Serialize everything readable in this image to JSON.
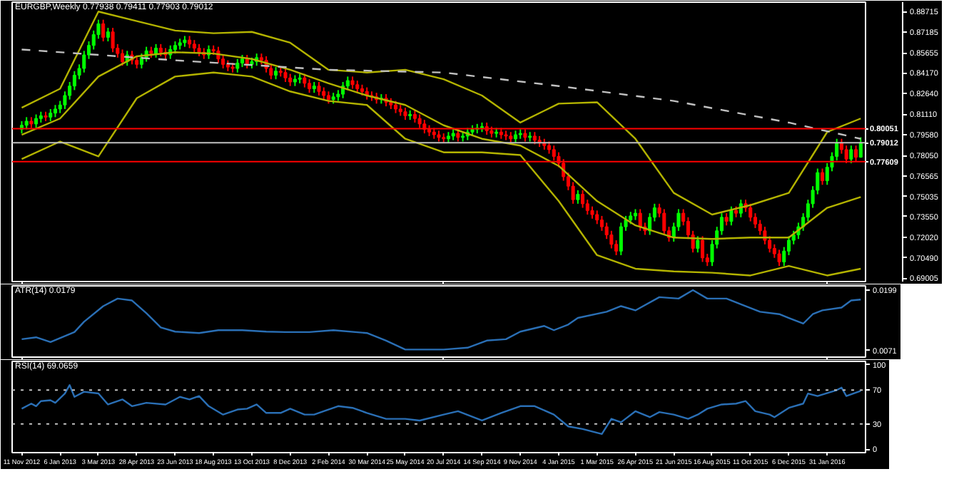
{
  "chart_data": [
    {
      "type": "candlestick",
      "title": "EURGBP,Weekly  0.77938 0.79411 0.77903 0.79012",
      "tick_labels": "y",
      "x": [
        "2012-11-11",
        "2012-11-18",
        "2012-11-25",
        "2012-12-02",
        "2012-12-09",
        "2012-12-16",
        "2012-12-23",
        "2012-12-30",
        "2013-01-06",
        "2013-01-13",
        "2013-01-20",
        "2013-01-27",
        "2013-02-03",
        "2013-02-10",
        "2013-02-17",
        "2013-02-24",
        "2013-03-03",
        "2013-03-10",
        "2013-03-17",
        "2013-03-24",
        "2013-03-31",
        "2013-04-07",
        "2013-04-14",
        "2013-04-21",
        "2013-04-28",
        "2013-05-05",
        "2013-05-12",
        "2013-05-19",
        "2013-05-26",
        "2013-06-02",
        "2013-06-09",
        "2013-06-16",
        "2013-06-23",
        "2013-06-30",
        "2013-07-07",
        "2013-07-14",
        "2013-07-21",
        "2013-07-28",
        "2013-08-04",
        "2013-08-11",
        "2013-08-18",
        "2013-08-25",
        "2013-09-01",
        "2013-09-08",
        "2013-09-15",
        "2013-09-22",
        "2013-09-29",
        "2013-10-06",
        "2013-10-13",
        "2013-10-20",
        "2013-10-27",
        "2013-11-03",
        "2013-11-10",
        "2013-11-17",
        "2013-11-24",
        "2013-12-01",
        "2013-12-08",
        "2013-12-15",
        "2013-12-22",
        "2013-12-29",
        "2014-01-05",
        "2014-01-12",
        "2014-01-19",
        "2014-01-26",
        "2014-02-02",
        "2014-02-09",
        "2014-02-16",
        "2014-02-23",
        "2014-03-02",
        "2014-03-09",
        "2014-03-16",
        "2014-03-23",
        "2014-03-30",
        "2014-04-06",
        "2014-04-13",
        "2014-04-20",
        "2014-04-27",
        "2014-05-04",
        "2014-05-11",
        "2014-05-18",
        "2014-05-25",
        "2014-06-01",
        "2014-06-08",
        "2014-06-15",
        "2014-06-22",
        "2014-06-29",
        "2014-07-06",
        "2014-07-13",
        "2014-07-20",
        "2014-07-27",
        "2014-08-03",
        "2014-08-10",
        "2014-08-17",
        "2014-08-24",
        "2014-08-31",
        "2014-09-07",
        "2014-09-14",
        "2014-09-21",
        "2014-09-28",
        "2014-10-05",
        "2014-10-12",
        "2014-10-19",
        "2014-10-26",
        "2014-11-02",
        "2014-11-09",
        "2014-11-16",
        "2014-11-23",
        "2014-11-30",
        "2014-12-07",
        "2014-12-14",
        "2014-12-21",
        "2014-12-28",
        "2015-01-04",
        "2015-01-11",
        "2015-01-18",
        "2015-01-25",
        "2015-02-01",
        "2015-02-08",
        "2015-02-15",
        "2015-02-22",
        "2015-03-01",
        "2015-03-08",
        "2015-03-15",
        "2015-03-22",
        "2015-03-29",
        "2015-04-05",
        "2015-04-12",
        "2015-04-19",
        "2015-04-26",
        "2015-05-03",
        "2015-05-10",
        "2015-05-17",
        "2015-05-24",
        "2015-05-31",
        "2015-06-07",
        "2015-06-14",
        "2015-06-21",
        "2015-06-28",
        "2015-07-05",
        "2015-07-12",
        "2015-07-19",
        "2015-07-26",
        "2015-08-02",
        "2015-08-09",
        "2015-08-16",
        "2015-08-23",
        "2015-08-30",
        "2015-09-06",
        "2015-09-13",
        "2015-09-20",
        "2015-09-27",
        "2015-10-04",
        "2015-10-11",
        "2015-10-18",
        "2015-10-25",
        "2015-11-01",
        "2015-11-08",
        "2015-11-15",
        "2015-11-22",
        "2015-11-29",
        "2015-12-06",
        "2015-12-13",
        "2015-12-20",
        "2015-12-27",
        "2016-01-03",
        "2016-01-10",
        "2016-01-17",
        "2016-01-24",
        "2016-01-31",
        "2016-02-07",
        "2016-02-14",
        "2016-02-21",
        "2016-02-28",
        "2016-03-06",
        "2016-03-13",
        "2016-03-20"
      ],
      "ohlc": [
        [
          0.8,
          0.806,
          0.797,
          0.803
        ],
        [
          0.803,
          0.809,
          0.8,
          0.806
        ],
        [
          0.806,
          0.809,
          0.801,
          0.804
        ],
        [
          0.804,
          0.811,
          0.801,
          0.808
        ],
        [
          0.808,
          0.813,
          0.805,
          0.81
        ],
        [
          0.81,
          0.813,
          0.806,
          0.809
        ],
        [
          0.809,
          0.815,
          0.806,
          0.812
        ],
        [
          0.812,
          0.818,
          0.809,
          0.815
        ],
        [
          0.815,
          0.821,
          0.812,
          0.818
        ],
        [
          0.818,
          0.828,
          0.815,
          0.825
        ],
        [
          0.825,
          0.835,
          0.822,
          0.832
        ],
        [
          0.832,
          0.843,
          0.829,
          0.84
        ],
        [
          0.84,
          0.848,
          0.837,
          0.845
        ],
        [
          0.845,
          0.858,
          0.842,
          0.855
        ],
        [
          0.855,
          0.865,
          0.852,
          0.862
        ],
        [
          0.862,
          0.873,
          0.859,
          0.87
        ],
        [
          0.87,
          0.881,
          0.867,
          0.878
        ],
        [
          0.878,
          0.881,
          0.865,
          0.868
        ],
        [
          0.868,
          0.875,
          0.865,
          0.872
        ],
        [
          0.872,
          0.875,
          0.857,
          0.86
        ],
        [
          0.86,
          0.863,
          0.853,
          0.856
        ],
        [
          0.856,
          0.859,
          0.847,
          0.85
        ],
        [
          0.85,
          0.858,
          0.847,
          0.855
        ],
        [
          0.855,
          0.858,
          0.848,
          0.851
        ],
        [
          0.851,
          0.854,
          0.845,
          0.848
        ],
        [
          0.848,
          0.856,
          0.845,
          0.853
        ],
        [
          0.853,
          0.861,
          0.85,
          0.858
        ],
        [
          0.858,
          0.861,
          0.853,
          0.856
        ],
        [
          0.856,
          0.863,
          0.853,
          0.86
        ],
        [
          0.86,
          0.863,
          0.854,
          0.857
        ],
        [
          0.857,
          0.86,
          0.852,
          0.855
        ],
        [
          0.855,
          0.862,
          0.852,
          0.859
        ],
        [
          0.859,
          0.865,
          0.856,
          0.862
        ],
        [
          0.862,
          0.867,
          0.859,
          0.864
        ],
        [
          0.864,
          0.869,
          0.861,
          0.866
        ],
        [
          0.866,
          0.869,
          0.86,
          0.863
        ],
        [
          0.863,
          0.866,
          0.857,
          0.86
        ],
        [
          0.86,
          0.863,
          0.854,
          0.857
        ],
        [
          0.857,
          0.86,
          0.852,
          0.855
        ],
        [
          0.855,
          0.862,
          0.852,
          0.859
        ],
        [
          0.859,
          0.862,
          0.855,
          0.858
        ],
        [
          0.858,
          0.861,
          0.849,
          0.852
        ],
        [
          0.852,
          0.855,
          0.845,
          0.848
        ],
        [
          0.848,
          0.851,
          0.843,
          0.846
        ],
        [
          0.846,
          0.849,
          0.842,
          0.845
        ],
        [
          0.845,
          0.852,
          0.842,
          0.849
        ],
        [
          0.849,
          0.855,
          0.846,
          0.852
        ],
        [
          0.852,
          0.855,
          0.845,
          0.848
        ],
        [
          0.848,
          0.853,
          0.845,
          0.85
        ],
        [
          0.85,
          0.856,
          0.847,
          0.853
        ],
        [
          0.853,
          0.856,
          0.848,
          0.851
        ],
        [
          0.851,
          0.854,
          0.842,
          0.845
        ],
        [
          0.845,
          0.848,
          0.837,
          0.84
        ],
        [
          0.84,
          0.846,
          0.837,
          0.843
        ],
        [
          0.843,
          0.846,
          0.839,
          0.842
        ],
        [
          0.842,
          0.845,
          0.835,
          0.838
        ],
        [
          0.838,
          0.841,
          0.832,
          0.835
        ],
        [
          0.835,
          0.84,
          0.832,
          0.837
        ],
        [
          0.837,
          0.841,
          0.834,
          0.838
        ],
        [
          0.838,
          0.841,
          0.831,
          0.834
        ],
        [
          0.834,
          0.837,
          0.827,
          0.83
        ],
        [
          0.83,
          0.835,
          0.827,
          0.832
        ],
        [
          0.832,
          0.835,
          0.825,
          0.828
        ],
        [
          0.828,
          0.831,
          0.822,
          0.825
        ],
        [
          0.825,
          0.828,
          0.819,
          0.822
        ],
        [
          0.822,
          0.827,
          0.819,
          0.824
        ],
        [
          0.824,
          0.829,
          0.821,
          0.826
        ],
        [
          0.826,
          0.835,
          0.823,
          0.832
        ],
        [
          0.832,
          0.839,
          0.829,
          0.836
        ],
        [
          0.836,
          0.839,
          0.83,
          0.833
        ],
        [
          0.833,
          0.836,
          0.827,
          0.83
        ],
        [
          0.83,
          0.833,
          0.825,
          0.828
        ],
        [
          0.828,
          0.831,
          0.822,
          0.825
        ],
        [
          0.825,
          0.828,
          0.821,
          0.824
        ],
        [
          0.824,
          0.827,
          0.819,
          0.822
        ],
        [
          0.822,
          0.826,
          0.819,
          0.823
        ],
        [
          0.823,
          0.826,
          0.817,
          0.82
        ],
        [
          0.82,
          0.823,
          0.815,
          0.818
        ],
        [
          0.818,
          0.821,
          0.812,
          0.815
        ],
        [
          0.815,
          0.818,
          0.81,
          0.813
        ],
        [
          0.813,
          0.816,
          0.807,
          0.81
        ],
        [
          0.81,
          0.814,
          0.807,
          0.811
        ],
        [
          0.811,
          0.814,
          0.805,
          0.808
        ],
        [
          0.808,
          0.811,
          0.801,
          0.804
        ],
        [
          0.804,
          0.807,
          0.797,
          0.8
        ],
        [
          0.8,
          0.803,
          0.795,
          0.798
        ],
        [
          0.798,
          0.801,
          0.793,
          0.796
        ],
        [
          0.796,
          0.799,
          0.791,
          0.794
        ],
        [
          0.794,
          0.797,
          0.79,
          0.793
        ],
        [
          0.793,
          0.798,
          0.79,
          0.795
        ],
        [
          0.795,
          0.8,
          0.792,
          0.797
        ],
        [
          0.797,
          0.8,
          0.791,
          0.794
        ],
        [
          0.794,
          0.798,
          0.791,
          0.795
        ],
        [
          0.795,
          0.801,
          0.792,
          0.798
        ],
        [
          0.798,
          0.803,
          0.795,
          0.8
        ],
        [
          0.8,
          0.804,
          0.797,
          0.801
        ],
        [
          0.801,
          0.805,
          0.798,
          0.802
        ],
        [
          0.802,
          0.805,
          0.796,
          0.799
        ],
        [
          0.799,
          0.802,
          0.794,
          0.797
        ],
        [
          0.797,
          0.801,
          0.794,
          0.798
        ],
        [
          0.798,
          0.801,
          0.793,
          0.796
        ],
        [
          0.796,
          0.799,
          0.792,
          0.795
        ],
        [
          0.795,
          0.798,
          0.79,
          0.793
        ],
        [
          0.793,
          0.799,
          0.79,
          0.796
        ],
        [
          0.796,
          0.8,
          0.793,
          0.797
        ],
        [
          0.797,
          0.8,
          0.791,
          0.794
        ],
        [
          0.794,
          0.798,
          0.791,
          0.795
        ],
        [
          0.795,
          0.798,
          0.789,
          0.792
        ],
        [
          0.792,
          0.795,
          0.787,
          0.79
        ],
        [
          0.79,
          0.793,
          0.785,
          0.788
        ],
        [
          0.788,
          0.791,
          0.782,
          0.785
        ],
        [
          0.785,
          0.788,
          0.777,
          0.78
        ],
        [
          0.78,
          0.783,
          0.772,
          0.775
        ],
        [
          0.775,
          0.778,
          0.762,
          0.765
        ],
        [
          0.765,
          0.768,
          0.755,
          0.758
        ],
        [
          0.758,
          0.761,
          0.745,
          0.748
        ],
        [
          0.748,
          0.755,
          0.745,
          0.752
        ],
        [
          0.752,
          0.755,
          0.742,
          0.745
        ],
        [
          0.745,
          0.748,
          0.737,
          0.74
        ],
        [
          0.74,
          0.743,
          0.734,
          0.737
        ],
        [
          0.737,
          0.74,
          0.73,
          0.733
        ],
        [
          0.733,
          0.736,
          0.725,
          0.728
        ],
        [
          0.728,
          0.731,
          0.719,
          0.722
        ],
        [
          0.722,
          0.725,
          0.712,
          0.715
        ],
        [
          0.715,
          0.718,
          0.707,
          0.71
        ],
        [
          0.71,
          0.731,
          0.707,
          0.728
        ],
        [
          0.728,
          0.736,
          0.725,
          0.733
        ],
        [
          0.733,
          0.739,
          0.73,
          0.736
        ],
        [
          0.736,
          0.741,
          0.733,
          0.738
        ],
        [
          0.738,
          0.741,
          0.725,
          0.728
        ],
        [
          0.728,
          0.731,
          0.722,
          0.725
        ],
        [
          0.725,
          0.738,
          0.722,
          0.735
        ],
        [
          0.735,
          0.745,
          0.732,
          0.742
        ],
        [
          0.742,
          0.745,
          0.735,
          0.738
        ],
        [
          0.738,
          0.741,
          0.722,
          0.725
        ],
        [
          0.725,
          0.728,
          0.717,
          0.72
        ],
        [
          0.72,
          0.731,
          0.717,
          0.728
        ],
        [
          0.728,
          0.741,
          0.725,
          0.738
        ],
        [
          0.738,
          0.741,
          0.729,
          0.732
        ],
        [
          0.732,
          0.735,
          0.719,
          0.722
        ],
        [
          0.722,
          0.725,
          0.709,
          0.712
        ],
        [
          0.712,
          0.721,
          0.709,
          0.718
        ],
        [
          0.718,
          0.721,
          0.702,
          0.705
        ],
        [
          0.705,
          0.708,
          0.699,
          0.702
        ],
        [
          0.702,
          0.718,
          0.699,
          0.715
        ],
        [
          0.715,
          0.728,
          0.712,
          0.725
        ],
        [
          0.725,
          0.738,
          0.722,
          0.735
        ],
        [
          0.735,
          0.738,
          0.729,
          0.732
        ],
        [
          0.732,
          0.743,
          0.729,
          0.74
        ],
        [
          0.74,
          0.743,
          0.735,
          0.738
        ],
        [
          0.738,
          0.748,
          0.735,
          0.745
        ],
        [
          0.745,
          0.748,
          0.739,
          0.742
        ],
        [
          0.742,
          0.745,
          0.732,
          0.735
        ],
        [
          0.735,
          0.738,
          0.727,
          0.73
        ],
        [
          0.73,
          0.733,
          0.722,
          0.725
        ],
        [
          0.725,
          0.728,
          0.715,
          0.718
        ],
        [
          0.718,
          0.721,
          0.709,
          0.712
        ],
        [
          0.712,
          0.715,
          0.705,
          0.708
        ],
        [
          0.708,
          0.711,
          0.699,
          0.702
        ],
        [
          0.702,
          0.713,
          0.699,
          0.71
        ],
        [
          0.71,
          0.721,
          0.707,
          0.718
        ],
        [
          0.718,
          0.725,
          0.715,
          0.722
        ],
        [
          0.722,
          0.731,
          0.719,
          0.728
        ],
        [
          0.728,
          0.738,
          0.725,
          0.735
        ],
        [
          0.735,
          0.748,
          0.732,
          0.745
        ],
        [
          0.745,
          0.758,
          0.742,
          0.755
        ],
        [
          0.755,
          0.771,
          0.752,
          0.768
        ],
        [
          0.768,
          0.771,
          0.759,
          0.762
        ],
        [
          0.762,
          0.775,
          0.759,
          0.772
        ],
        [
          0.772,
          0.783,
          0.769,
          0.78
        ],
        [
          0.78,
          0.793,
          0.777,
          0.79
        ],
        [
          0.79,
          0.793,
          0.782,
          0.785
        ],
        [
          0.785,
          0.788,
          0.775,
          0.778
        ],
        [
          0.778,
          0.788,
          0.775,
          0.785
        ],
        [
          0.785,
          0.788,
          0.776,
          0.77938
        ],
        [
          0.77938,
          0.79411,
          0.77903,
          0.79012
        ]
      ],
      "colors": [
        "#00ff00",
        "#00ff00",
        "#ff0000",
        "#00ff00",
        "#00ff00",
        "#ff0000",
        "#00ff00",
        "#00ff00",
        "#00ff00",
        "#00ff00",
        "#00ff00",
        "#00ff00",
        "#00ff00",
        "#00ff00",
        "#00ff00",
        "#00ff00",
        "#00ff00",
        "#ff0000",
        "#00ff00",
        "#ff0000",
        "#ff0000",
        "#ff0000",
        "#00ff00",
        "#ff0000",
        "#ff0000",
        "#00ff00",
        "#00ff00",
        "#ff0000",
        "#00ff00",
        "#ff0000",
        "#ff0000",
        "#00ff00",
        "#00ff00",
        "#00ff00",
        "#00ff00",
        "#ff0000",
        "#ff0000",
        "#ff0000",
        "#ff0000",
        "#00ff00",
        "#ff0000",
        "#ff0000",
        "#ff0000",
        "#ff0000",
        "#ff0000",
        "#00ff00",
        "#00ff00",
        "#ff0000",
        "#00ff00",
        "#00ff00",
        "#ff0000",
        "#ff0000",
        "#ff0000",
        "#00ff00",
        "#ff0000",
        "#ff0000",
        "#ff0000",
        "#00ff00",
        "#00ff00",
        "#ff0000",
        "#ff0000",
        "#00ff00",
        "#ff0000",
        "#ff0000",
        "#ff0000",
        "#00ff00",
        "#00ff00",
        "#00ff00",
        "#00ff00",
        "#ff0000",
        "#ff0000",
        "#ff0000",
        "#ff0000",
        "#ff0000",
        "#ff0000",
        "#00ff00",
        "#ff0000",
        "#ff0000",
        "#ff0000",
        "#ff0000",
        "#ff0000",
        "#00ff00",
        "#ff0000",
        "#ff0000",
        "#ff0000",
        "#ff0000",
        "#ff0000",
        "#ff0000",
        "#ff0000",
        "#00ff00",
        "#00ff00",
        "#ff0000",
        "#00ff00",
        "#00ff00",
        "#00ff00",
        "#00ff00",
        "#00ff00",
        "#ff0000",
        "#ff0000",
        "#00ff00",
        "#ff0000",
        "#ff0000",
        "#ff0000",
        "#00ff00",
        "#00ff00",
        "#ff0000",
        "#00ff00",
        "#ff0000",
        "#ff0000",
        "#ff0000",
        "#ff0000",
        "#ff0000",
        "#ff0000",
        "#ff0000",
        "#ff0000",
        "#ff0000",
        "#00ff00",
        "#ff0000",
        "#ff0000",
        "#ff0000",
        "#ff0000",
        "#ff0000",
        "#ff0000",
        "#ff0000",
        "#ff0000",
        "#00ff00",
        "#00ff00",
        "#00ff00",
        "#00ff00",
        "#ff0000",
        "#ff0000",
        "#00ff00",
        "#00ff00",
        "#ff0000",
        "#ff0000",
        "#ff0000",
        "#00ff00",
        "#00ff00",
        "#ff0000",
        "#ff0000",
        "#ff0000",
        "#00ff00",
        "#ff0000",
        "#ff0000",
        "#00ff00",
        "#00ff00",
        "#00ff00",
        "#ff0000",
        "#00ff00",
        "#ff0000",
        "#00ff00",
        "#ff0000",
        "#ff0000",
        "#ff0000",
        "#ff0000",
        "#ff0000",
        "#ff0000",
        "#ff0000",
        "#ff0000",
        "#00ff00",
        "#00ff00",
        "#00ff00",
        "#00ff00",
        "#00ff00",
        "#00ff00",
        "#00ff00",
        "#00ff00",
        "#ff0000",
        "#00ff00",
        "#00ff00",
        "#00ff00",
        "#ff0000",
        "#ff0000",
        "#00ff00",
        "#ff0000",
        "#00ff00"
      ],
      "series": [
        {
          "type": "line",
          "color": "#b3b300",
          "x": [
            "2012-11-11",
            "2013-01-06",
            "2013-03-03",
            "2013-04-28",
            "2013-06-23",
            "2013-08-18",
            "2013-10-13",
            "2013-12-08",
            "2014-02-02",
            "2014-03-30",
            "2014-05-25",
            "2014-07-20",
            "2014-09-14",
            "2014-11-09",
            "2015-01-04",
            "2015-03-01",
            "2015-04-26",
            "2015-06-21",
            "2015-08-16",
            "2015-10-11",
            "2015-12-06",
            "2016-01-31",
            "2016-03-20"
          ],
          "values": [
            0.816,
            0.83,
            0.887,
            0.88,
            0.873,
            0.871,
            0.872,
            0.864,
            0.844,
            0.842,
            0.844,
            0.837,
            0.825,
            0.805,
            0.819,
            0.82,
            0.793,
            0.753,
            0.737,
            0.744,
            0.753,
            0.798,
            0.808
          ]
        },
        {
          "type": "line",
          "color": "#b3b300",
          "x": [
            "2012-11-11",
            "2013-01-06",
            "2013-03-03",
            "2013-04-28",
            "2013-06-23",
            "2013-08-18",
            "2013-10-13",
            "2013-12-08",
            "2014-02-02",
            "2014-03-30",
            "2014-05-25",
            "2014-07-20",
            "2014-09-14",
            "2014-11-09",
            "2015-01-04",
            "2015-03-01",
            "2015-04-26",
            "2015-06-21",
            "2015-08-16",
            "2015-10-11",
            "2015-12-06",
            "2016-01-31",
            "2016-03-20"
          ],
          "values": [
            0.796,
            0.808,
            0.839,
            0.854,
            0.857,
            0.856,
            0.852,
            0.844,
            0.834,
            0.825,
            0.818,
            0.803,
            0.793,
            0.788,
            0.773,
            0.747,
            0.729,
            0.72,
            0.719,
            0.72,
            0.72,
            0.742,
            0.75
          ]
        },
        {
          "type": "line",
          "color": "#b3b300",
          "x": [
            "2012-11-11",
            "2013-01-06",
            "2013-03-03",
            "2013-04-28",
            "2013-06-23",
            "2013-08-18",
            "2013-10-13",
            "2013-12-08",
            "2014-02-02",
            "2014-03-30",
            "2014-05-25",
            "2014-07-20",
            "2014-09-14",
            "2014-11-09",
            "2015-01-04",
            "2015-03-01",
            "2015-04-26",
            "2015-06-21",
            "2015-08-16",
            "2015-10-11",
            "2015-12-06",
            "2016-01-31",
            "2016-03-20"
          ],
          "values": [
            0.778,
            0.791,
            0.78,
            0.823,
            0.839,
            0.842,
            0.839,
            0.828,
            0.821,
            0.818,
            0.793,
            0.783,
            0.783,
            0.781,
            0.747,
            0.707,
            0.697,
            0.695,
            0.694,
            0.692,
            0.699,
            0.692,
            0.697
          ]
        },
        {
          "type": "line",
          "color": "#c0c0c0",
          "line_style": "dashed",
          "x": [
            "2012-11-11",
            "2013-06-23",
            "2014-02-02",
            "2014-07-20",
            "2015-01-04",
            "2015-06-21",
            "2015-12-06",
            "2016-03-20"
          ],
          "values": [
            0.859,
            0.851,
            0.844,
            0.842,
            0.832,
            0.821,
            0.805,
            0.793
          ]
        }
      ],
      "xlim": [
        "2012-10-28",
        "2016-03-27"
      ],
      "ylim": [
        0.6875,
        0.894
      ],
      "xticks": [
        {
          "value": "2012-11-11",
          "label": null
        },
        {
          "value": "2014-07-20",
          "label": null
        },
        {
          "value": "2016-01-31",
          "label": null
        }
      ],
      "yticks": [
        0.88715,
        0.87185,
        0.85655,
        {
          "value": 0.8417,
          "label": "0.84170"
        },
        {
          "value": 0.8264,
          "label": "0.82640"
        },
        {
          "value": 0.8111,
          "label": "0.81110"
        },
        {
          "value": 0.7958,
          "label": "0.79580"
        },
        {
          "value": 0.7805,
          "label": "0.78050"
        },
        0.76565,
        0.75035,
        {
          "value": 0.7355,
          "label": "0.73550"
        },
        {
          "value": 0.7202,
          "label": "0.72020"
        },
        {
          "value": 0.7049,
          "label": "0.70490"
        },
        0.69005
      ],
      "ref_lines": [
        {
          "axis": "y",
          "value": 0.80051,
          "label": "0.80051",
          "color": "#ff0000"
        },
        {
          "axis": "y",
          "value": 0.79012,
          "label": "0.79012",
          "color": "#c0c0c0"
        },
        {
          "axis": "y",
          "value": 0.77609,
          "label": "0.77609",
          "color": "#ff0000"
        }
      ]
    },
    {
      "type": "line",
      "title": "ATR(14) 0.0179",
      "tick_labels": "y",
      "series": [
        {
          "color": "#2a6fb5",
          "x": [
            "2012-11-11",
            "2012-12-02",
            "2012-12-23",
            "2013-01-27",
            "2013-02-10",
            "2013-03-10",
            "2013-03-31",
            "2013-04-21",
            "2013-05-12",
            "2013-06-02",
            "2013-06-23",
            "2013-07-28",
            "2013-08-25",
            "2013-09-29",
            "2013-11-03",
            "2013-12-01",
            "2014-01-05",
            "2014-02-09",
            "2014-03-30",
            "2014-04-27",
            "2014-05-25",
            "2014-06-15",
            "2014-07-20",
            "2014-08-24",
            "2014-09-21",
            "2014-10-19",
            "2014-11-09",
            "2014-12-14",
            "2014-12-28",
            "2015-01-18",
            "2015-02-01",
            "2015-03-15",
            "2015-04-05",
            "2015-04-26",
            "2015-05-31",
            "2015-06-28",
            "2015-07-19",
            "2015-08-09",
            "2015-09-06",
            "2015-09-27",
            "2015-10-25",
            "2015-11-22",
            "2015-12-06",
            "2015-12-27",
            "2016-01-10",
            "2016-01-24",
            "2016-02-21",
            "2016-03-06",
            "2016-03-20"
          ],
          "values": [
            0.0095,
            0.0099,
            0.0089,
            0.011,
            0.0132,
            0.0165,
            0.0181,
            0.0177,
            0.015,
            0.012,
            0.0111,
            0.0108,
            0.0114,
            0.0114,
            0.0111,
            0.011,
            0.011,
            0.0114,
            0.0108,
            0.0092,
            0.0073,
            0.0073,
            0.0073,
            0.0077,
            0.0092,
            0.0095,
            0.0111,
            0.0123,
            0.0114,
            0.0126,
            0.014,
            0.0153,
            0.0165,
            0.0156,
            0.0184,
            0.0181,
            0.0199,
            0.0181,
            0.0181,
            0.0169,
            0.0153,
            0.0148,
            0.014,
            0.0128,
            0.0148,
            0.0156,
            0.0162,
            0.0177,
            0.0179
          ]
        }
      ],
      "xlim": [
        "2012-10-28",
        "2016-03-27"
      ],
      "ylim": [
        0.0057,
        0.0208
      ],
      "yticks": [
        0.0199,
        0.0071
      ],
      "xticks": [
        {
          "value": "2012-11-11",
          "label": null
        },
        {
          "value": "2014-07-20",
          "label": null
        },
        {
          "value": "2016-01-31",
          "label": null
        }
      ]
    },
    {
      "type": "line",
      "title": "RSI(14) 69.0659",
      "series": [
        {
          "color": "#2a6fb5",
          "x": [
            "2012-11-11",
            "2012-11-25",
            "2012-12-02",
            "2012-12-09",
            "2012-12-23",
            "2012-12-30",
            "2013-01-13",
            "2013-01-20",
            "2013-01-27",
            "2013-02-10",
            "2013-03-03",
            "2013-03-17",
            "2013-04-07",
            "2013-04-21",
            "2013-05-12",
            "2013-06-09",
            "2013-06-30",
            "2013-07-14",
            "2013-07-28",
            "2013-08-11",
            "2013-09-01",
            "2013-09-22",
            "2013-10-06",
            "2013-10-20",
            "2013-11-03",
            "2013-11-24",
            "2013-12-08",
            "2013-12-29",
            "2014-01-12",
            "2014-01-26",
            "2014-02-16",
            "2014-03-09",
            "2014-03-30",
            "2014-04-27",
            "2014-05-25",
            "2014-06-15",
            "2014-07-20",
            "2014-08-10",
            "2014-09-14",
            "2014-10-12",
            "2014-11-09",
            "2014-11-30",
            "2014-12-28",
            "2015-01-18",
            "2015-02-08",
            "2015-03-08",
            "2015-03-22",
            "2015-04-05",
            "2015-04-26",
            "2015-05-17",
            "2015-05-31",
            "2015-06-21",
            "2015-07-12",
            "2015-07-26",
            "2015-08-09",
            "2015-08-30",
            "2015-09-20",
            "2015-10-04",
            "2015-10-18",
            "2015-11-08",
            "2015-11-15",
            "2015-12-06",
            "2015-12-27",
            "2016-01-03",
            "2016-01-17",
            "2016-02-14",
            "2016-02-21",
            "2016-02-28",
            "2016-03-20"
          ],
          "values": [
            48,
            54,
            51,
            57,
            58,
            55,
            66,
            76,
            62,
            68,
            66,
            53,
            59,
            51,
            55,
            53,
            62,
            59,
            63,
            51,
            41,
            47,
            48,
            53,
            43,
            43,
            48,
            41,
            41,
            45,
            51,
            49,
            43,
            36,
            36,
            34,
            41,
            45,
            34,
            43,
            51,
            51,
            41,
            27,
            24,
            18,
            36,
            32,
            45,
            38,
            44,
            41,
            36,
            41,
            48,
            53,
            54,
            57,
            45,
            41,
            38,
            49,
            54,
            66,
            63,
            70,
            73,
            63,
            69.0659
          ]
        }
      ],
      "xlim": [
        "2012-10-28",
        "2016-03-27"
      ],
      "ylim": [
        -4,
        104
      ],
      "yticks": [
        100,
        70,
        30,
        0
      ],
      "xticks": [
        {
          "value": "2012-11-11",
          "label": "11 Nov 2012"
        },
        {
          "value": "2013-01-06",
          "label": "6 Jan 2013"
        },
        {
          "value": "2013-03-03",
          "label": "3 Mar 2013"
        },
        {
          "value": "2013-04-28",
          "label": "28 Apr 2013"
        },
        {
          "value": "2013-06-23",
          "label": "23 Jun 2013"
        },
        {
          "value": "2013-08-18",
          "label": "18 Aug 2013"
        },
        {
          "value": "2013-10-13",
          "label": "13 Oct 2013"
        },
        {
          "value": "2013-12-08",
          "label": "8 Dec 2013"
        },
        {
          "value": "2014-02-02",
          "label": "2 Feb 2014"
        },
        {
          "value": "2014-03-30",
          "label": "30 Mar 2014"
        },
        {
          "value": "2014-05-25",
          "label": "25 May 2014"
        },
        {
          "value": "2014-07-20",
          "label": "20 Jul 2014"
        },
        {
          "value": "2014-09-14",
          "label": "14 Sep 2014"
        },
        {
          "value": "2014-11-09",
          "label": "9 Nov 2014"
        },
        {
          "value": "2015-01-04",
          "label": "4 Jan 2015"
        },
        {
          "value": "2015-03-01",
          "label": "1 Mar 2015"
        },
        {
          "value": "2015-04-26",
          "label": "26 Apr 2015"
        },
        {
          "value": "2015-06-21",
          "label": "21 Jun 2015"
        },
        {
          "value": "2015-08-16",
          "label": "16 Aug 2015"
        },
        {
          "value": "2015-10-11",
          "label": "11 Oct 2015"
        },
        {
          "value": "2015-12-06",
          "label": "6 Dec 2015"
        },
        {
          "value": "2016-01-31",
          "label": "31 Jan 2016"
        }
      ],
      "ref_lines": [
        {
          "axis": "y",
          "value": 70,
          "color": "#c0c0c0",
          "line_style": "dotted"
        },
        {
          "axis": "y",
          "value": 30,
          "color": "#c0c0c0",
          "line_style": "dotted"
        }
      ]
    }
  ]
}
